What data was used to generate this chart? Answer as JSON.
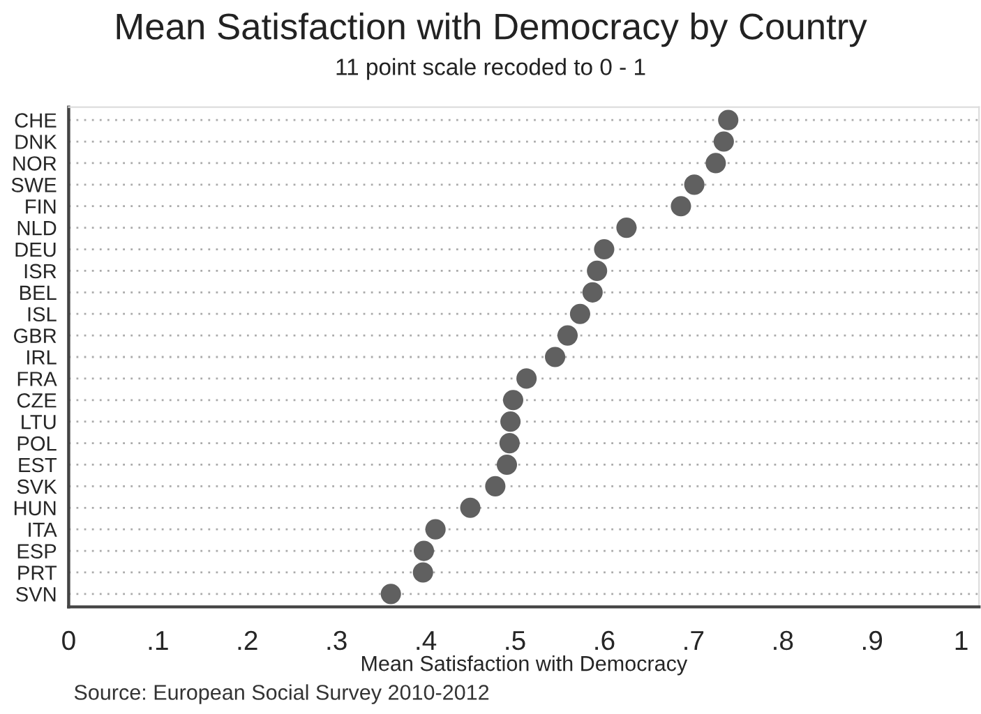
{
  "chart_data": {
    "type": "scatter",
    "title": "Mean Satisfaction with Democracy by Country",
    "subtitle": "11 point scale recoded to 0 - 1",
    "xlabel": "Mean Satisfaction with Democracy",
    "annotations": [
      "Source: European Social Survey 2010-2012"
    ],
    "orientation": "horizontal",
    "categories": [
      "CHE",
      "DNK",
      "NOR",
      "SWE",
      "FIN",
      "NLD",
      "DEU",
      "ISR",
      "BEL",
      "ISL",
      "GBR",
      "IRL",
      "FRA",
      "CZE",
      "LTU",
      "POL",
      "EST",
      "SVK",
      "HUN",
      "ITA",
      "ESP",
      "PRT",
      "SVN"
    ],
    "series": [
      {
        "color": "#606060",
        "values": [
          0.739,
          0.734,
          0.725,
          0.701,
          0.686,
          0.625,
          0.6,
          0.592,
          0.587,
          0.573,
          0.559,
          0.545,
          0.513,
          0.498,
          0.495,
          0.494,
          0.491,
          0.478,
          0.45,
          0.411,
          0.398,
          0.397,
          0.361
        ]
      }
    ],
    "xlim": [
      0,
      1.02
    ],
    "xticks": [
      0,
      {
        "value": 0.1,
        "label": ".1"
      },
      {
        "value": 0.2,
        "label": ".2"
      },
      {
        "value": 0.3,
        "label": ".3"
      },
      {
        "value": 0.4,
        "label": ".4"
      },
      {
        "value": 0.5,
        "label": ".5"
      },
      {
        "value": 0.6,
        "label": ".6"
      },
      {
        "value": 0.7,
        "label": ".7"
      },
      {
        "value": 0.8,
        "label": ".8"
      },
      {
        "value": 0.9,
        "label": ".9"
      },
      1
    ],
    "grid": "y",
    "marker": "circle",
    "legend": false
  }
}
